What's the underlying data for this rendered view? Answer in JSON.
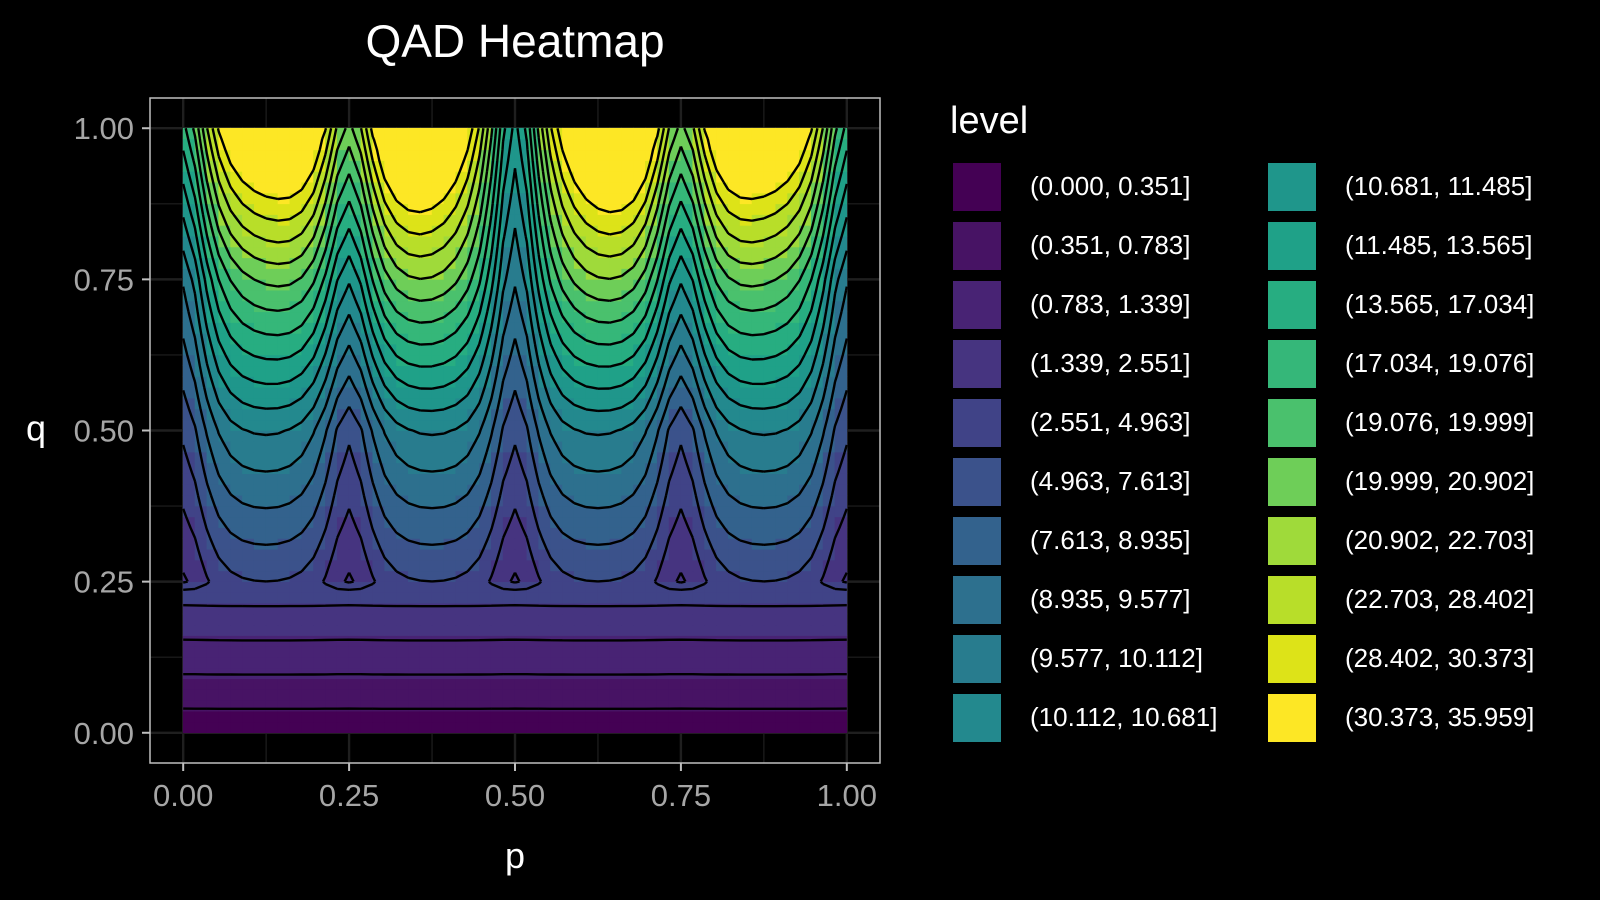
{
  "chart_data": {
    "type": "heatmap",
    "title": "QAD Heatmap",
    "xlabel": "p",
    "ylabel": "q",
    "xlim": [
      0,
      1
    ],
    "ylim": [
      0,
      1
    ],
    "x_ticks": [
      "0.00",
      "0.25",
      "0.50",
      "0.75",
      "1.00"
    ],
    "y_ticks": [
      "0.00",
      "0.25",
      "0.50",
      "0.75",
      "1.00"
    ],
    "grid": true,
    "contour_lines": true,
    "legend_position": "right",
    "legend": {
      "title": "level",
      "entries": [
        {
          "label": "(0.000, 0.351]",
          "color": "#440154"
        },
        {
          "label": "(0.351, 0.783]",
          "color": "#471364"
        },
        {
          "label": "(0.783, 1.339]",
          "color": "#482374"
        },
        {
          "label": "(1.339, 2.551]",
          "color": "#463480"
        },
        {
          "label": "(2.551, 4.963]",
          "color": "#404387"
        },
        {
          "label": "(4.963, 7.613]",
          "color": "#3b528b"
        },
        {
          "label": "(7.613, 8.935]",
          "color": "#33628d"
        },
        {
          "label": "(8.935, 9.577]",
          "color": "#2d708e"
        },
        {
          "label": "(9.577, 10.112]",
          "color": "#287c8e"
        },
        {
          "label": "(10.112, 10.681]",
          "color": "#23898e"
        },
        {
          "label": "(10.681, 11.485]",
          "color": "#1f968b"
        },
        {
          "label": "(11.485, 13.565]",
          "color": "#1fa188"
        },
        {
          "label": "(13.565, 17.034]",
          "color": "#27ad81"
        },
        {
          "label": "(17.034, 19.076]",
          "color": "#35b779"
        },
        {
          "label": "(19.076, 19.999]",
          "color": "#4ac16d"
        },
        {
          "label": "(19.999, 20.902]",
          "color": "#6ece58"
        },
        {
          "label": "(20.902, 22.703]",
          "color": "#9fda3a"
        },
        {
          "label": "(22.703, 28.402]",
          "color": "#b8de29"
        },
        {
          "label": "(28.402, 30.373]",
          "color": "#dde318"
        },
        {
          "label": "(30.373, 35.959]",
          "color": "#fde725"
        }
      ]
    },
    "colors": {
      "background": "#000000",
      "panel_border": "#bfbfbf",
      "grid": "#1f1f1f",
      "contour": "#000000",
      "tick_text": "#a6a6a6"
    }
  }
}
